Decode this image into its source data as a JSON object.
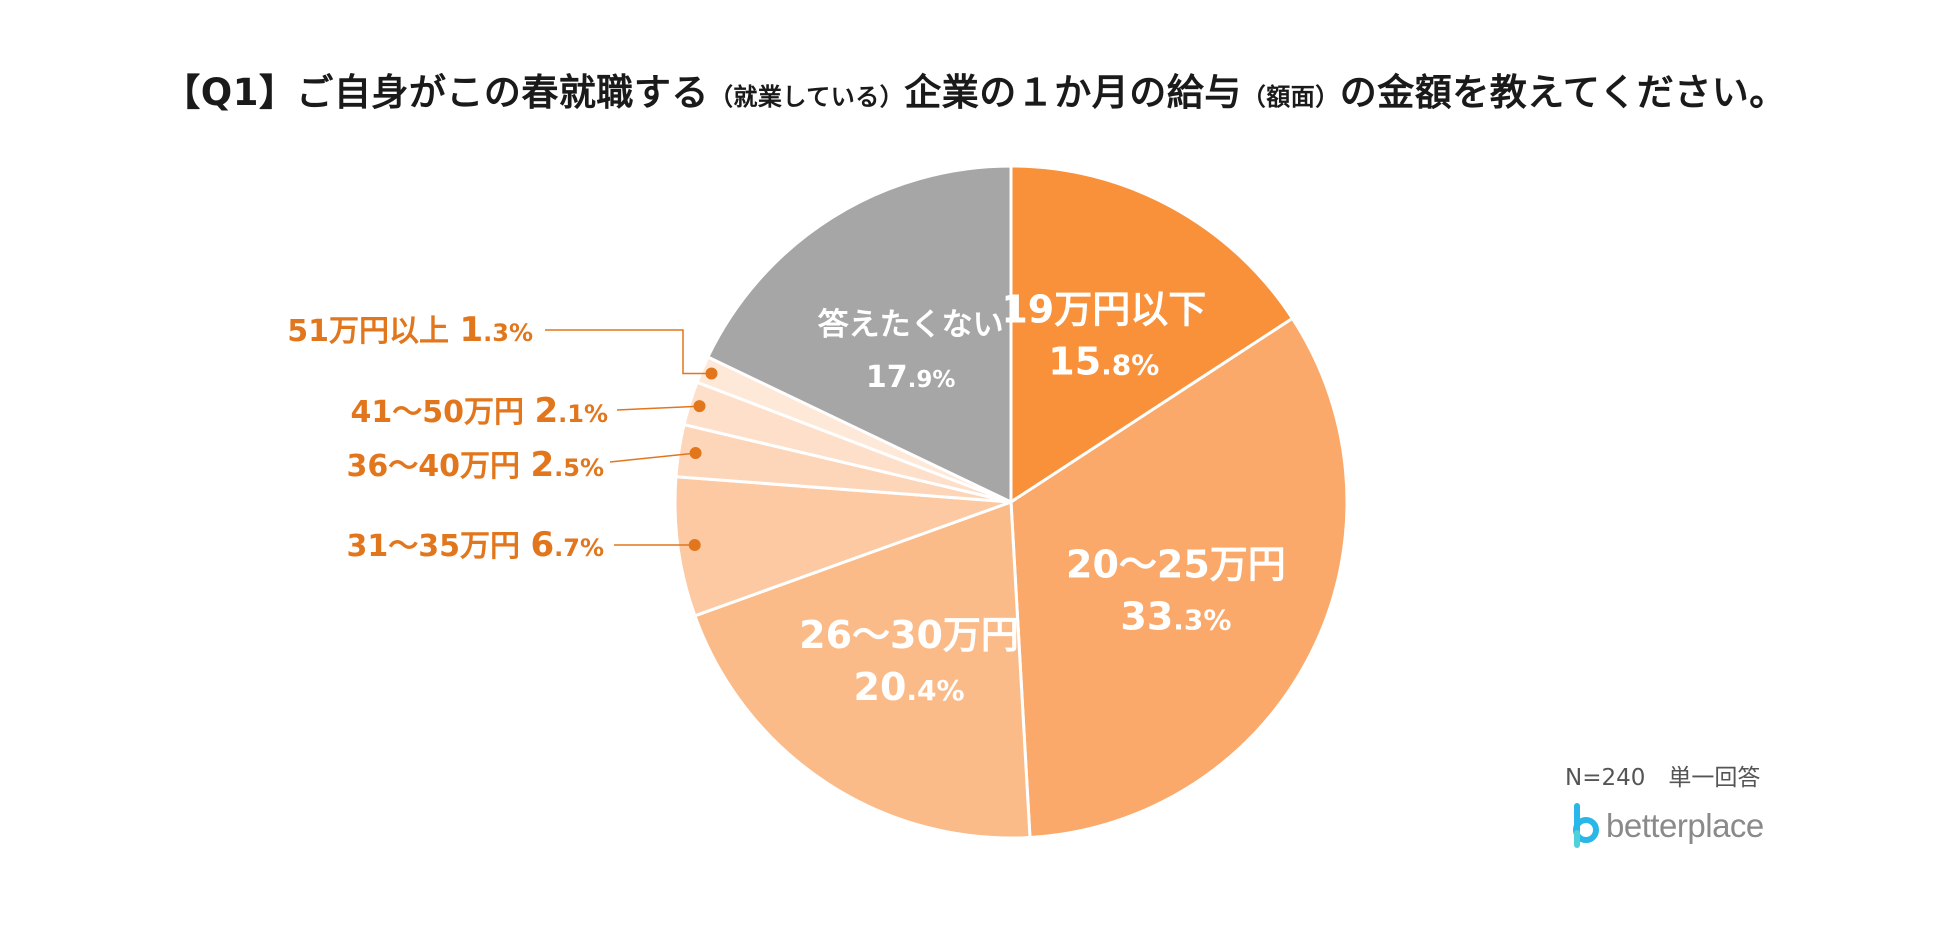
{
  "title": {
    "prefix": "【Q1】ご自身がこの春就職する",
    "paren1": "（就業している）",
    "middle": "企業の１か月の給与",
    "paren2": "（額面）",
    "suffix": "の金額を教えてください。"
  },
  "chart_data": {
    "type": "pie",
    "start_angle_deg": 0,
    "direction": "clockwise",
    "slices": [
      {
        "label": "19万円以下",
        "value": 15.8,
        "value_int": "15",
        "value_dec": ".8%",
        "color": "#f9913a",
        "label_style": "inside"
      },
      {
        "label": "20～25万円",
        "value": 33.3,
        "value_int": "33",
        "value_dec": ".3%",
        "color": "#faa96a",
        "label_style": "inside"
      },
      {
        "label": "26～30万円",
        "value": 20.4,
        "value_int": "20",
        "value_dec": ".4%",
        "color": "#fbbb89",
        "label_style": "inside"
      },
      {
        "label": "31～35万円",
        "value": 6.7,
        "value_int": "6",
        "value_dec": ".7%",
        "color": "#fcc9a3",
        "label_style": "callout"
      },
      {
        "label": "36～40万円",
        "value": 2.5,
        "value_int": "2",
        "value_dec": ".5%",
        "color": "#fdd5b8",
        "label_style": "callout"
      },
      {
        "label": "41～50万円",
        "value": 2.1,
        "value_int": "2",
        "value_dec": ".1%",
        "color": "#fedfc9",
        "label_style": "callout"
      },
      {
        "label": "51万円以上",
        "value": 1.3,
        "value_int": "1",
        "value_dec": ".3%",
        "color": "#fee8d8",
        "label_style": "callout"
      },
      {
        "label": "答えたくない",
        "value": 17.9,
        "value_int": "17",
        "value_dec": ".9%",
        "color": "#a6a6a6",
        "label_style": "inside"
      }
    ],
    "callout_color": "#e2761c"
  },
  "note": "N=240　単一回答",
  "logo": {
    "text": "betterplace",
    "icon": "betterplace-logo-icon",
    "icon_color": "#29b6e8"
  }
}
